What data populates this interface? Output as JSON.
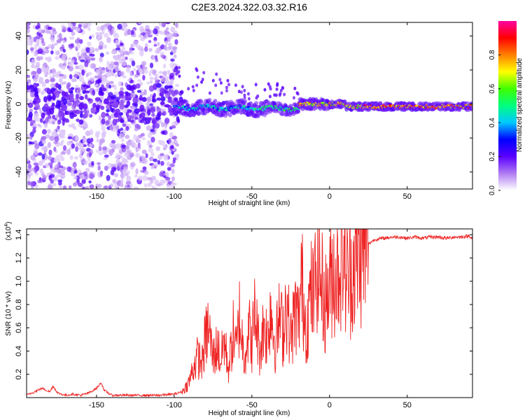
{
  "title": "C2E3.2024.322.03.32.R16",
  "chart_data": [
    {
      "type": "heatmap",
      "title": "C2E3.2024.322.03.32.R16",
      "xlabel": "Height of straight line (km)",
      "ylabel": "Frequency (Hz)",
      "xlim": [
        -195,
        92
      ],
      "ylim": [
        -50,
        48
      ],
      "xticks": [
        -150,
        -100,
        -50,
        0,
        50
      ],
      "yticks": [
        -40,
        -20,
        0,
        20,
        40
      ],
      "colorbar": {
        "label": "Normalized spectral amplitude",
        "range": [
          0,
          1
        ],
        "ticks": [
          "0.0",
          "0.2",
          "0.4",
          "0.6",
          "0.8"
        ],
        "colors": [
          "#ffffff",
          "#b07cf2",
          "#5a00ff",
          "#0000ff",
          "#00c8ff",
          "#00ff80",
          "#40ff00",
          "#ffff00",
          "#ff8000",
          "#ff0000",
          "#ff00a0"
        ]
      }
    },
    {
      "type": "line",
      "xlabel": "Height of straight line (km)",
      "ylabel": "SNR (10 * v/v)",
      "scale_label": "(x10",
      "scale_exp": "4",
      "scale_close": ")",
      "xlim": [
        -195,
        92
      ],
      "ylim": [
        0,
        1.45
      ],
      "xticks": [
        -150,
        -100,
        -50,
        0,
        50
      ],
      "yticks": [
        "0.2",
        "0.4",
        "0.6",
        "0.8",
        "1.0",
        "1.2",
        "1.4"
      ],
      "line_color": "#ee2222",
      "series": [
        {
          "x": [
            -195,
            -190,
            -185,
            -180,
            -178,
            -175,
            -170,
            -165,
            -160,
            -155,
            -150,
            -147,
            -145,
            -140,
            -130,
            -120,
            -110,
            -100,
            -95,
            -92,
            -90,
            -88,
            -85,
            -82,
            -80,
            -78,
            -75,
            -72,
            -70,
            -68,
            -65,
            -62,
            -60,
            -58,
            -55,
            -52,
            -50,
            -48,
            -45,
            -42,
            -40,
            -38,
            -35,
            -32,
            -30,
            -28,
            -25,
            -22,
            -20,
            -18,
            -15,
            -12,
            -10,
            -8,
            -5,
            -3,
            0,
            2,
            5,
            8,
            10,
            12,
            15,
            18,
            20,
            22,
            25,
            28,
            30,
            35,
            40,
            45,
            50,
            55,
            60,
            65,
            70,
            75,
            80,
            85,
            90,
            92
          ],
          "y": [
            0.02,
            0.05,
            0.08,
            0.05,
            0.1,
            0.04,
            0.02,
            0.03,
            0.02,
            0.04,
            0.08,
            0.13,
            0.06,
            0.02,
            0.02,
            0.02,
            0.02,
            0.03,
            0.05,
            0.1,
            0.15,
            0.25,
            0.35,
            0.3,
            0.5,
            0.6,
            0.35,
            0.45,
            0.3,
            0.5,
            0.25,
            0.55,
            0.4,
            0.7,
            0.35,
            0.6,
            0.45,
            0.75,
            0.4,
            0.65,
            0.5,
            0.8,
            0.45,
            0.7,
            0.55,
            0.85,
            0.5,
            0.75,
            0.65,
            1.0,
            0.6,
            0.9,
            0.85,
            1.2,
            0.95,
            0.8,
            0.95,
            1.1,
            1.05,
            1.3,
            1.1,
            1.0,
            1.15,
            1.2,
            1.25,
            1.3,
            1.32,
            1.35,
            1.36,
            1.37,
            1.38,
            1.38,
            1.37,
            1.38,
            1.37,
            1.38,
            1.38,
            1.37,
            1.38,
            1.38,
            1.39,
            1.37
          ]
        }
      ]
    }
  ]
}
